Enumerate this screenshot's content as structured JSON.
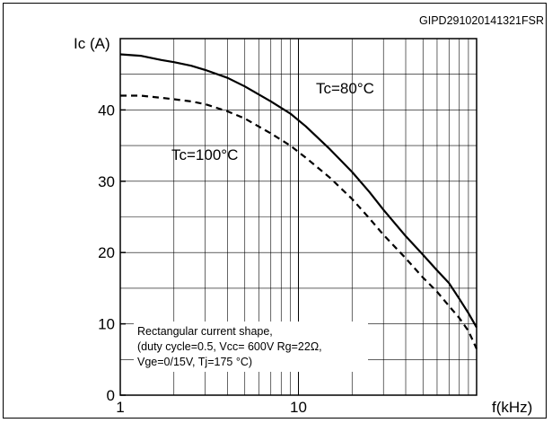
{
  "chart_data": {
    "type": "line",
    "figure_id": "GIPD291020141321FSR",
    "xlabel": "f(kHz)",
    "ylabel": "Ic (A)",
    "xscale": "log",
    "xlim": [
      1,
      100
    ],
    "ylim": [
      0,
      50
    ],
    "x_ticks": [
      1,
      10
    ],
    "x_tick_labels": [
      "1",
      "10"
    ],
    "y_ticks": [
      0,
      10,
      20,
      30,
      40
    ],
    "y_tick_labels": [
      "0",
      "10",
      "20",
      "30",
      "40"
    ],
    "grid": true,
    "series": [
      {
        "name": "Tc=80°C",
        "line_style": "solid",
        "points": [
          [
            1,
            47.8
          ],
          [
            1.3,
            47.6
          ],
          [
            1.7,
            47.0
          ],
          [
            2,
            46.7
          ],
          [
            2.5,
            46.2
          ],
          [
            3,
            45.6
          ],
          [
            4,
            44.5
          ],
          [
            5,
            43.3
          ],
          [
            7,
            41.2
          ],
          [
            9,
            39.5
          ],
          [
            11,
            37.7
          ],
          [
            15,
            34.5
          ],
          [
            20,
            31.3
          ],
          [
            25,
            28.5
          ],
          [
            30,
            26.0
          ],
          [
            40,
            22.3
          ],
          [
            50,
            19.7
          ],
          [
            60,
            17.5
          ],
          [
            70,
            15.7
          ],
          [
            80,
            13.5
          ],
          [
            90,
            11.5
          ],
          [
            100,
            9.5
          ]
        ]
      },
      {
        "name": "Tc=100°C",
        "line_style": "dashed",
        "points": [
          [
            1,
            42.0
          ],
          [
            1.3,
            42.0
          ],
          [
            1.7,
            41.7
          ],
          [
            2,
            41.5
          ],
          [
            2.5,
            41.2
          ],
          [
            3,
            40.8
          ],
          [
            4,
            39.8
          ],
          [
            5,
            38.8
          ],
          [
            7,
            36.7
          ],
          [
            9,
            35.0
          ],
          [
            11,
            33.3
          ],
          [
            15,
            30.5
          ],
          [
            20,
            27.5
          ],
          [
            25,
            24.8
          ],
          [
            30,
            22.5
          ],
          [
            40,
            19.2
          ],
          [
            50,
            16.5
          ],
          [
            60,
            14.5
          ],
          [
            70,
            12.5
          ],
          [
            80,
            10.8
          ],
          [
            90,
            9.0
          ],
          [
            100,
            6.5
          ]
        ]
      }
    ],
    "annotations": [
      "Rectangular current shape,",
      "(duty cycle=0.5, Vcc= 600V Rg=22Ω,",
      "Vge=0/15V, Tj=175 °C)"
    ]
  }
}
